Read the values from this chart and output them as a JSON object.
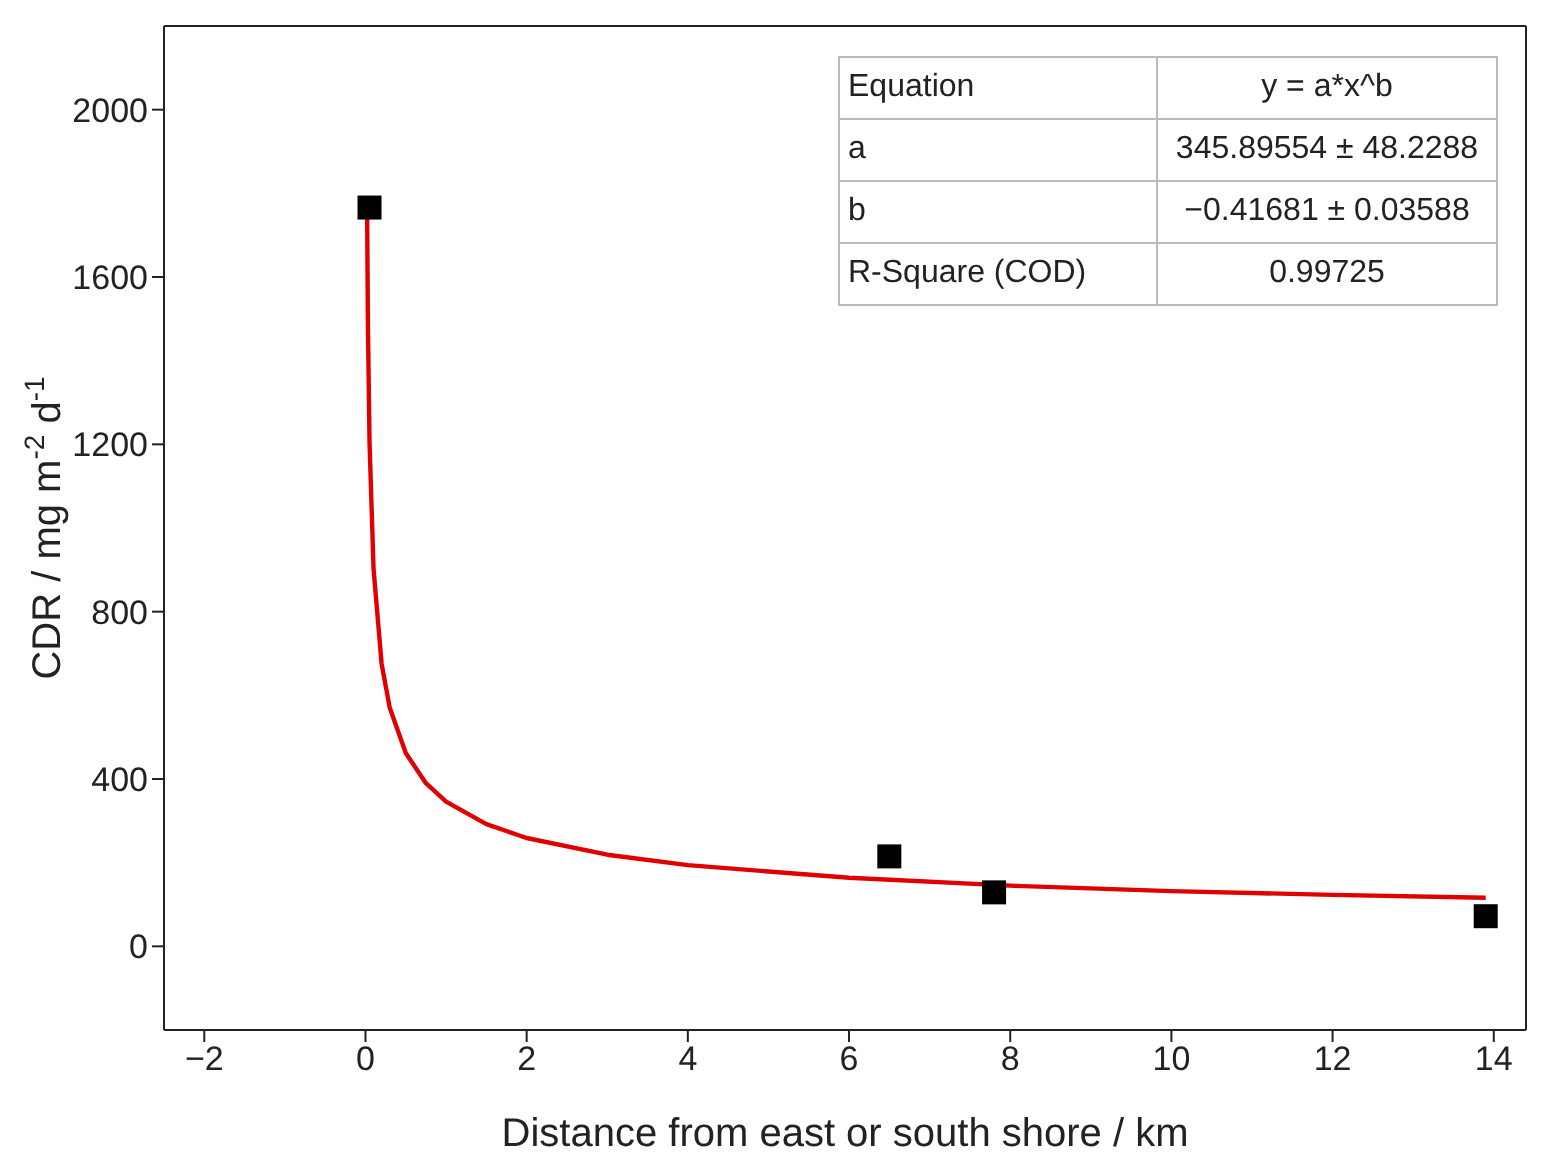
{
  "chart_data": {
    "type": "scatter",
    "xlabel": "Distance from east or south shore / km",
    "ylabel": "CDR / mg m$^{-2}$ d$^{-1}$",
    "xlim": [
      -2.5,
      14.4
    ],
    "xticks": [
      -2,
      0,
      2,
      4,
      6,
      8,
      10,
      12,
      14
    ],
    "ylim": [
      -200,
      2200
    ],
    "yticks": [
      0,
      400,
      800,
      1200,
      1600,
      2000
    ],
    "series": [
      {
        "color": "#000000",
        "marker": "square",
        "x": [
          0.05,
          6.5,
          7.8,
          13.9
        ],
        "values": [
          1766,
          215,
          129,
          72
        ]
      },
      {
        "type": "line",
        "color": "#e00000",
        "marker": "none",
        "line_style": "solid",
        "x": [
          0.02,
          0.03,
          0.05,
          0.1,
          0.2,
          0.3,
          0.5,
          0.75,
          1,
          1.5,
          2,
          3,
          4,
          6,
          8,
          10,
          12,
          13.9
        ],
        "values": [
          1766,
          1491,
          1206,
          903,
          676,
          571,
          462,
          390,
          346,
          292,
          259,
          219,
          194,
          164,
          145,
          132,
          123,
          116
        ]
      }
    ],
    "annotations": [
      "Equation",
      "y = a*x^b",
      "a",
      "345.89554 ± 48.2288",
      "b",
      "−0.41681 ± 0.03588",
      "R-Square (COD)",
      "0.99725"
    ]
  }
}
